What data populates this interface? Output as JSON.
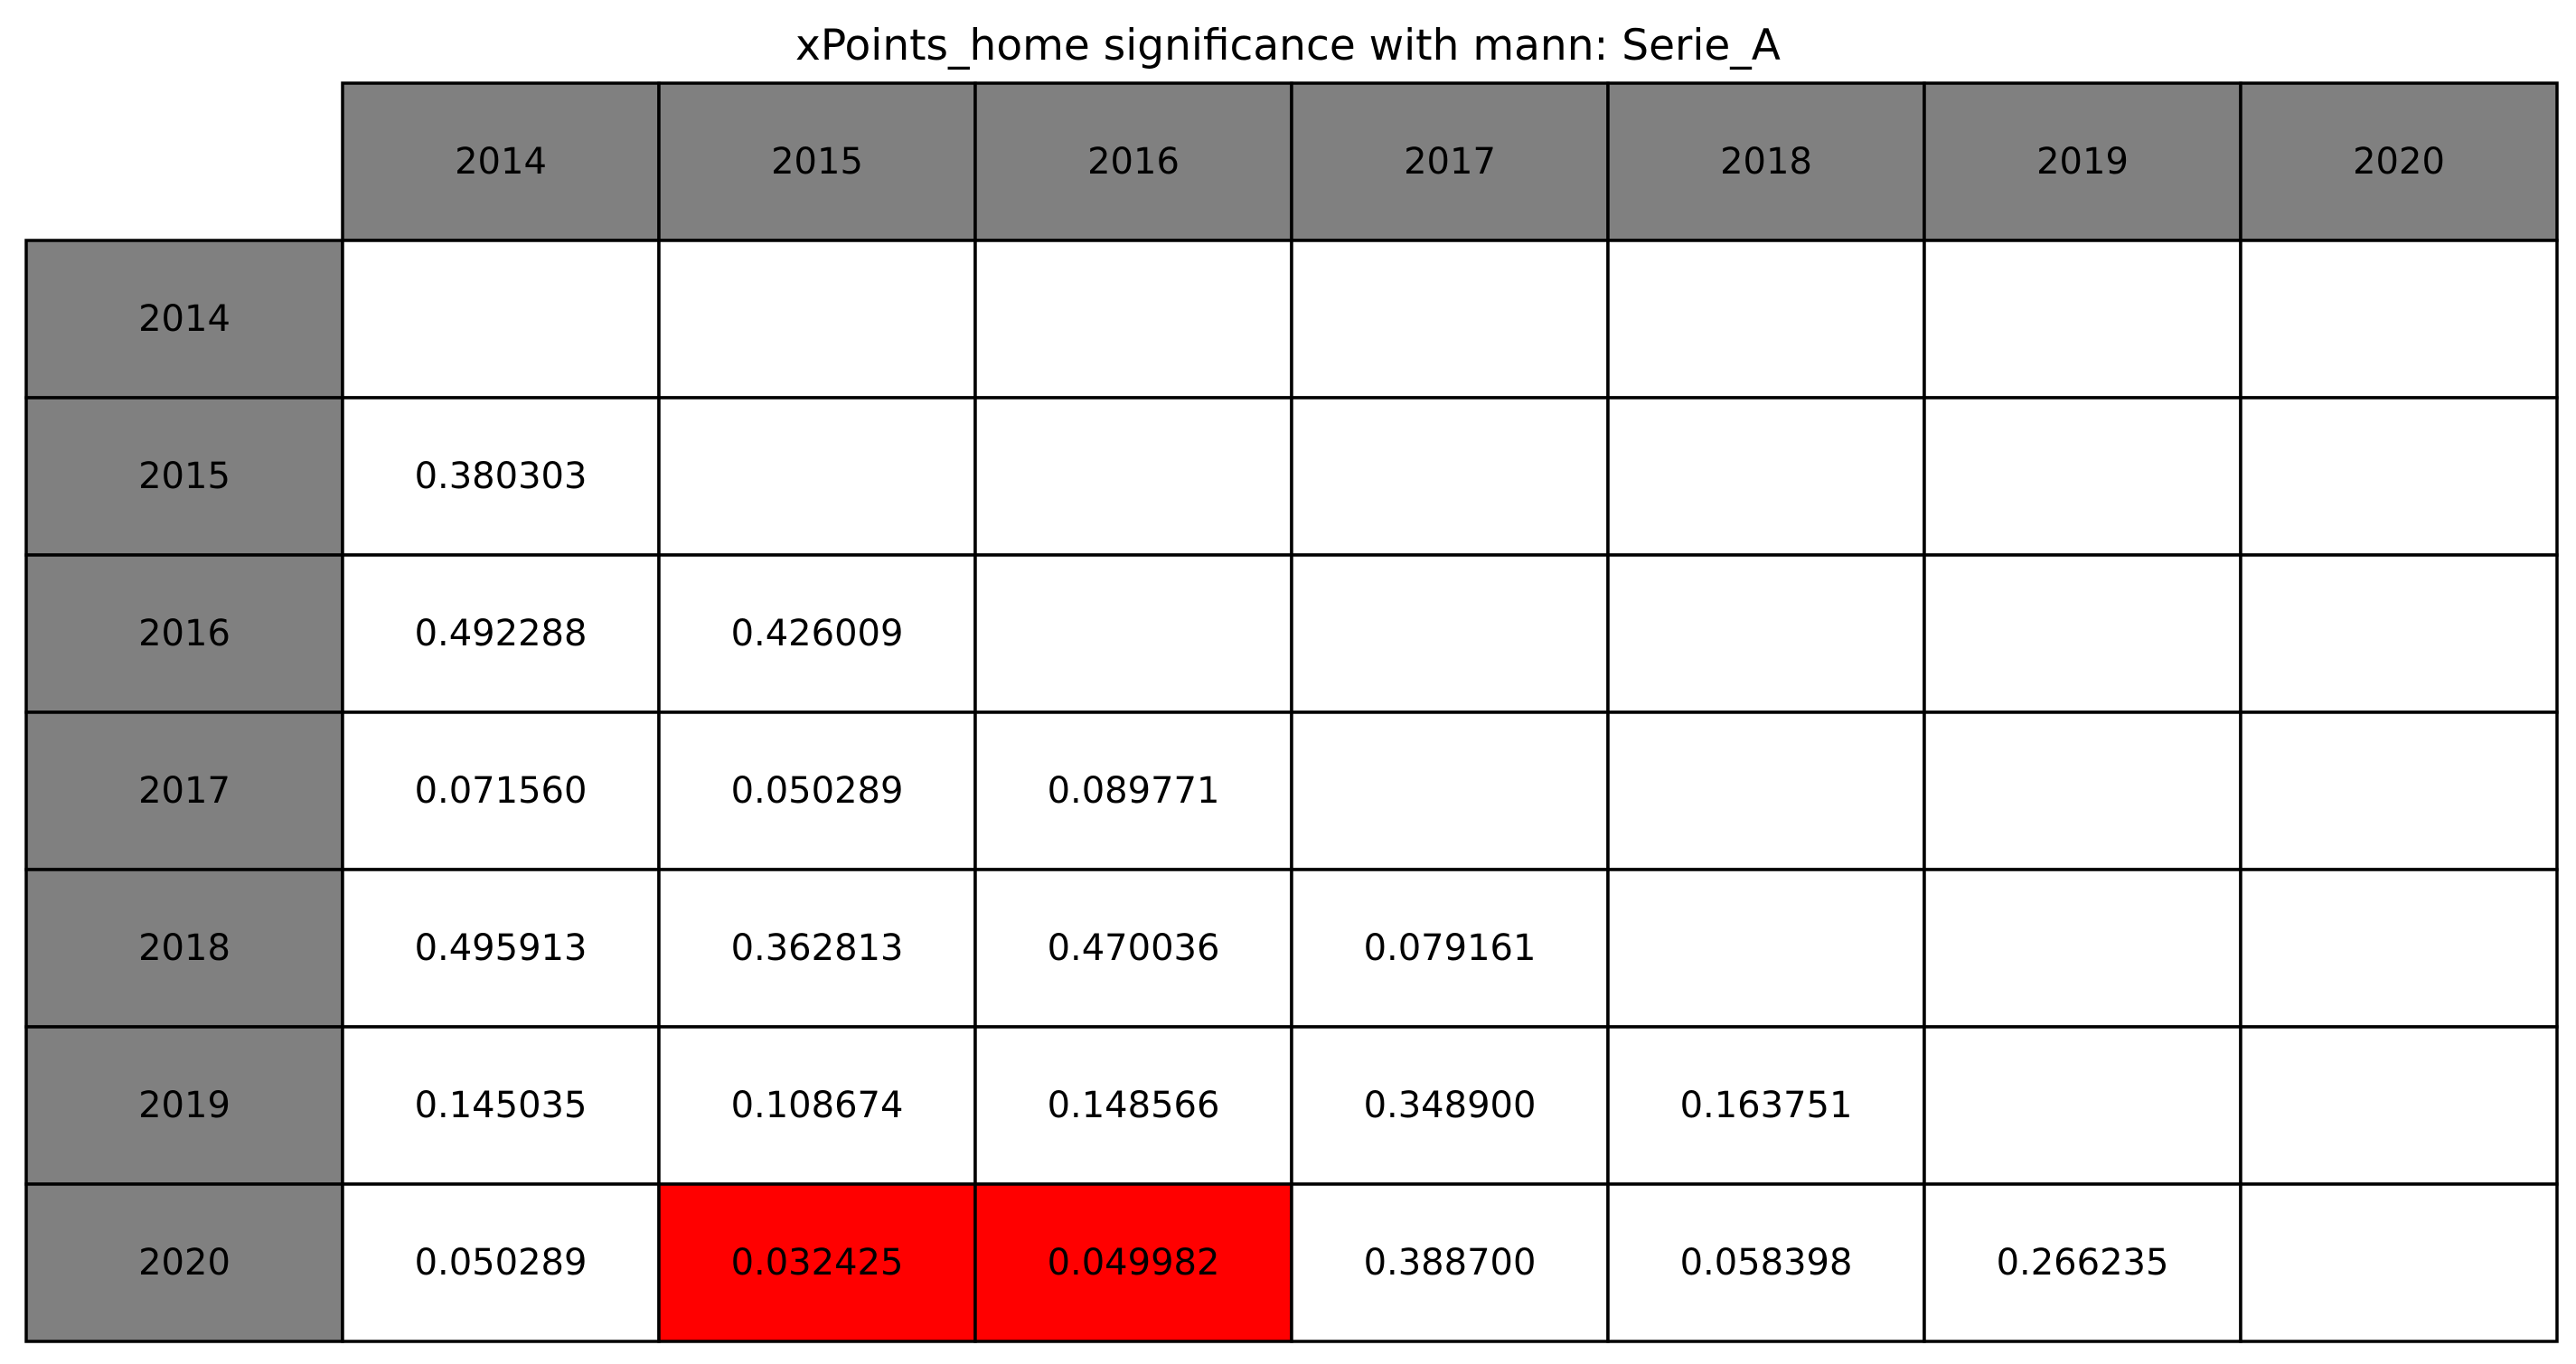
{
  "chart_data": {
    "type": "table",
    "title": "xPoints_home significance with mann: Serie_A",
    "column_headers": [
      "2014",
      "2015",
      "2016",
      "2017",
      "2018",
      "2019",
      "2020"
    ],
    "row_headers": [
      "2014",
      "2015",
      "2016",
      "2017",
      "2018",
      "2019",
      "2020"
    ],
    "cells": [
      [
        "",
        "",
        "",
        "",
        "",
        "",
        ""
      ],
      [
        "0.380303",
        "",
        "",
        "",
        "",
        "",
        ""
      ],
      [
        "0.492288",
        "0.426009",
        "",
        "",
        "",
        "",
        ""
      ],
      [
        "0.071560",
        "0.050289",
        "0.089771",
        "",
        "",
        "",
        ""
      ],
      [
        "0.495913",
        "0.362813",
        "0.470036",
        "0.079161",
        "",
        "",
        ""
      ],
      [
        "0.145035",
        "0.108674",
        "0.148566",
        "0.348900",
        "0.163751",
        "",
        ""
      ],
      [
        "0.050289",
        "0.032425",
        "0.049982",
        "0.388700",
        "0.058398",
        "0.266235",
        ""
      ]
    ],
    "significance_threshold": 0.05,
    "colors": {
      "header_fill": "#808080",
      "cell_fill": "#ffffff",
      "significant_fill": "#ff0000",
      "grid_line": "#000000",
      "text": "#000000"
    }
  }
}
